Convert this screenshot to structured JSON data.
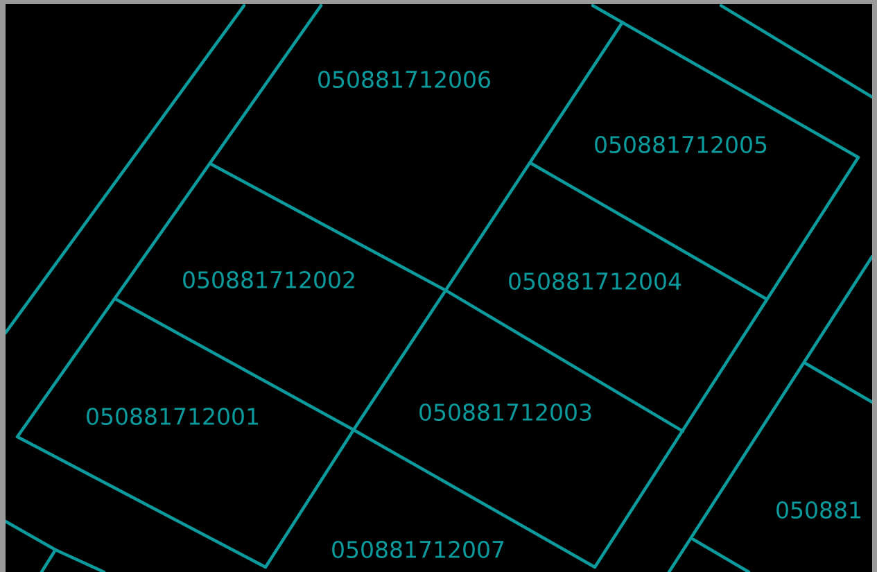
{
  "map": {
    "background_color": "#000000",
    "frame_color": "#9a9a9a",
    "line_color": "#0d9a9d",
    "label_color": "#0d9a9d",
    "parcels": [
      {
        "id": "p-2006",
        "label": "050881712006"
      },
      {
        "id": "p-2005",
        "label": "050881712005"
      },
      {
        "id": "p-2002",
        "label": "050881712002"
      },
      {
        "id": "p-2004",
        "label": "050881712004"
      },
      {
        "id": "p-2001",
        "label": "050881712001"
      },
      {
        "id": "p-2003",
        "label": "050881712003"
      },
      {
        "id": "p-2007",
        "label": "050881712007"
      },
      {
        "id": "p-edge",
        "label": "050881"
      }
    ]
  }
}
